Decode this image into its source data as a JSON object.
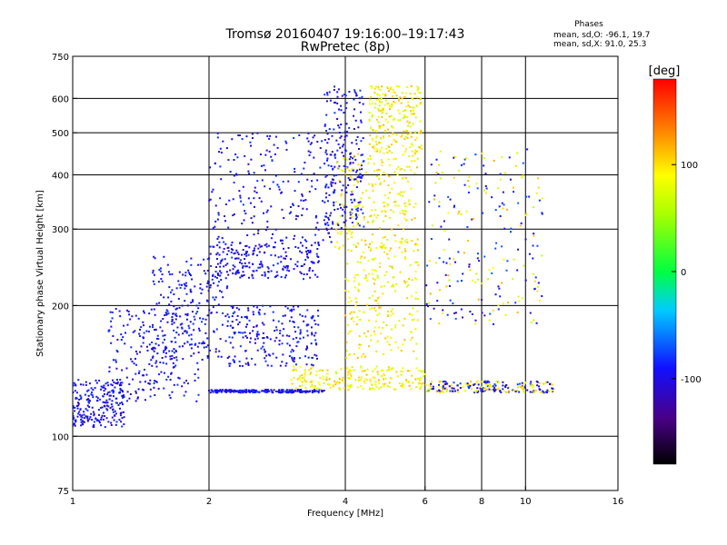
{
  "chart_data": {
    "type": "scatter",
    "title": "Tromsø 20160407 19:16:00–19:17:43",
    "subtitle": "RwPretec (8p)",
    "xlabel": "Frequency [MHz]",
    "ylabel": "Stationary phase Virtual Height [km]",
    "x_scale": "log",
    "y_scale": "log",
    "xlim": [
      1,
      16
    ],
    "ylim": [
      75,
      750
    ],
    "x_ticks": [
      1,
      2,
      4,
      6,
      8,
      10,
      16
    ],
    "y_ticks": [
      75,
      100,
      200,
      300,
      400,
      500,
      600,
      750
    ],
    "x_gridlines": [
      2,
      4,
      6,
      8,
      10
    ],
    "y_gridlines": [
      100,
      200,
      300,
      400,
      500,
      600
    ],
    "grid": true,
    "stats": {
      "header": "Phases",
      "line_O": "mean, sd,O: -96.1, 19.7",
      "line_X": "mean, sd,X: 91.0, 25.3"
    },
    "colorbar": {
      "label": "[deg]",
      "ticks": [
        100,
        0,
        -100
      ],
      "range": [
        -180,
        180
      ]
    },
    "series": [
      {
        "mode": "O",
        "phase_mean": -96.1,
        "phase_sd": 19.7,
        "traces": [
          {
            "f": [
              1.0,
              1.3
            ],
            "h": [
              105,
              135
            ]
          },
          {
            "f": [
              1.2,
              1.9
            ],
            "h": [
              120,
              200
            ]
          },
          {
            "f": [
              1.5,
              2.2
            ],
            "h": [
              150,
              260
            ]
          },
          {
            "f": [
              2.0,
              3.5
            ],
            "h": [
              230,
              280
            ]
          },
          {
            "f": [
              2.0,
              3.8
            ],
            "h": [
              280,
              500
            ]
          },
          {
            "f": [
              3.6,
              4.4
            ],
            "h": [
              300,
              640
            ]
          },
          {
            "f": [
              2.0,
              3.6
            ],
            "h": [
              126,
              128
            ]
          },
          {
            "f": [
              2.2,
              3.5
            ],
            "h": [
              145,
              200
            ]
          }
        ]
      },
      {
        "mode": "X",
        "phase_mean": 91.0,
        "phase_sd": 25.3,
        "traces": [
          {
            "f": [
              3.8,
              5.8
            ],
            "h": [
              270,
              450
            ]
          },
          {
            "f": [
              4.5,
              5.9
            ],
            "h": [
              450,
              640
            ]
          },
          {
            "f": [
              3.0,
              6.0
            ],
            "h": [
              128,
              145
            ]
          },
          {
            "f": [
              4.0,
              5.8
            ],
            "h": [
              150,
              280
            ]
          }
        ]
      },
      {
        "mode": "mixed",
        "traces": [
          {
            "f": [
              6.0,
              11.5
            ],
            "h": [
              126,
              134
            ]
          },
          {
            "f": [
              6.0,
              11.0
            ],
            "h": [
              180,
              460
            ]
          }
        ]
      }
    ]
  }
}
